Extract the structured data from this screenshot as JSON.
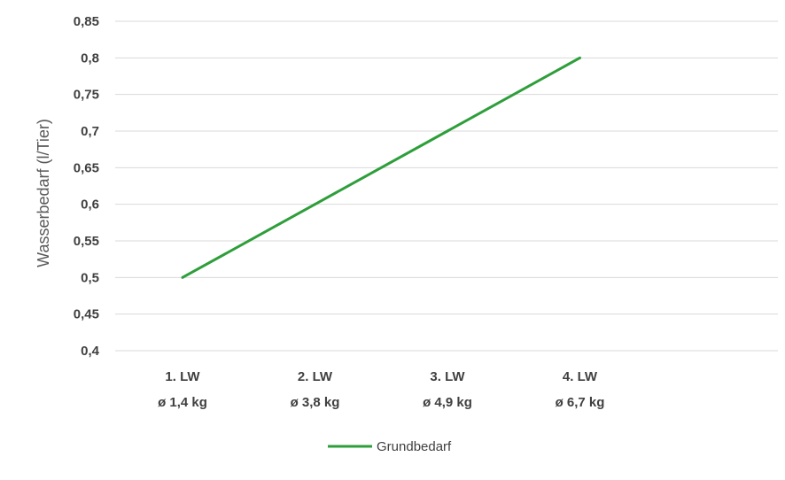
{
  "chart_data": {
    "type": "line",
    "title": "",
    "xlabel": "",
    "ylabel": "Wasserbedarf (l/Tier)",
    "ylim": [
      0.4,
      0.85
    ],
    "y_ticks": [
      "0,4",
      "0,45",
      "0,5",
      "0,55",
      "0,6",
      "0,65",
      "0,7",
      "0,75",
      "0,8",
      "0,85"
    ],
    "grid": true,
    "legend_position": "bottom",
    "categories": [
      {
        "line1": "1. LW",
        "line2": "ø 1,4 kg"
      },
      {
        "line1": "2. LW",
        "line2": "ø 3,8 kg"
      },
      {
        "line1": "3. LW",
        "line2": "ø 4,9 kg"
      },
      {
        "line1": "4. LW",
        "line2": "ø 6,7 kg"
      }
    ],
    "series": [
      {
        "name": "Grundbedarf",
        "color": "#2e9e3a",
        "values": [
          0.5,
          0.6,
          0.7,
          0.8
        ]
      }
    ]
  }
}
